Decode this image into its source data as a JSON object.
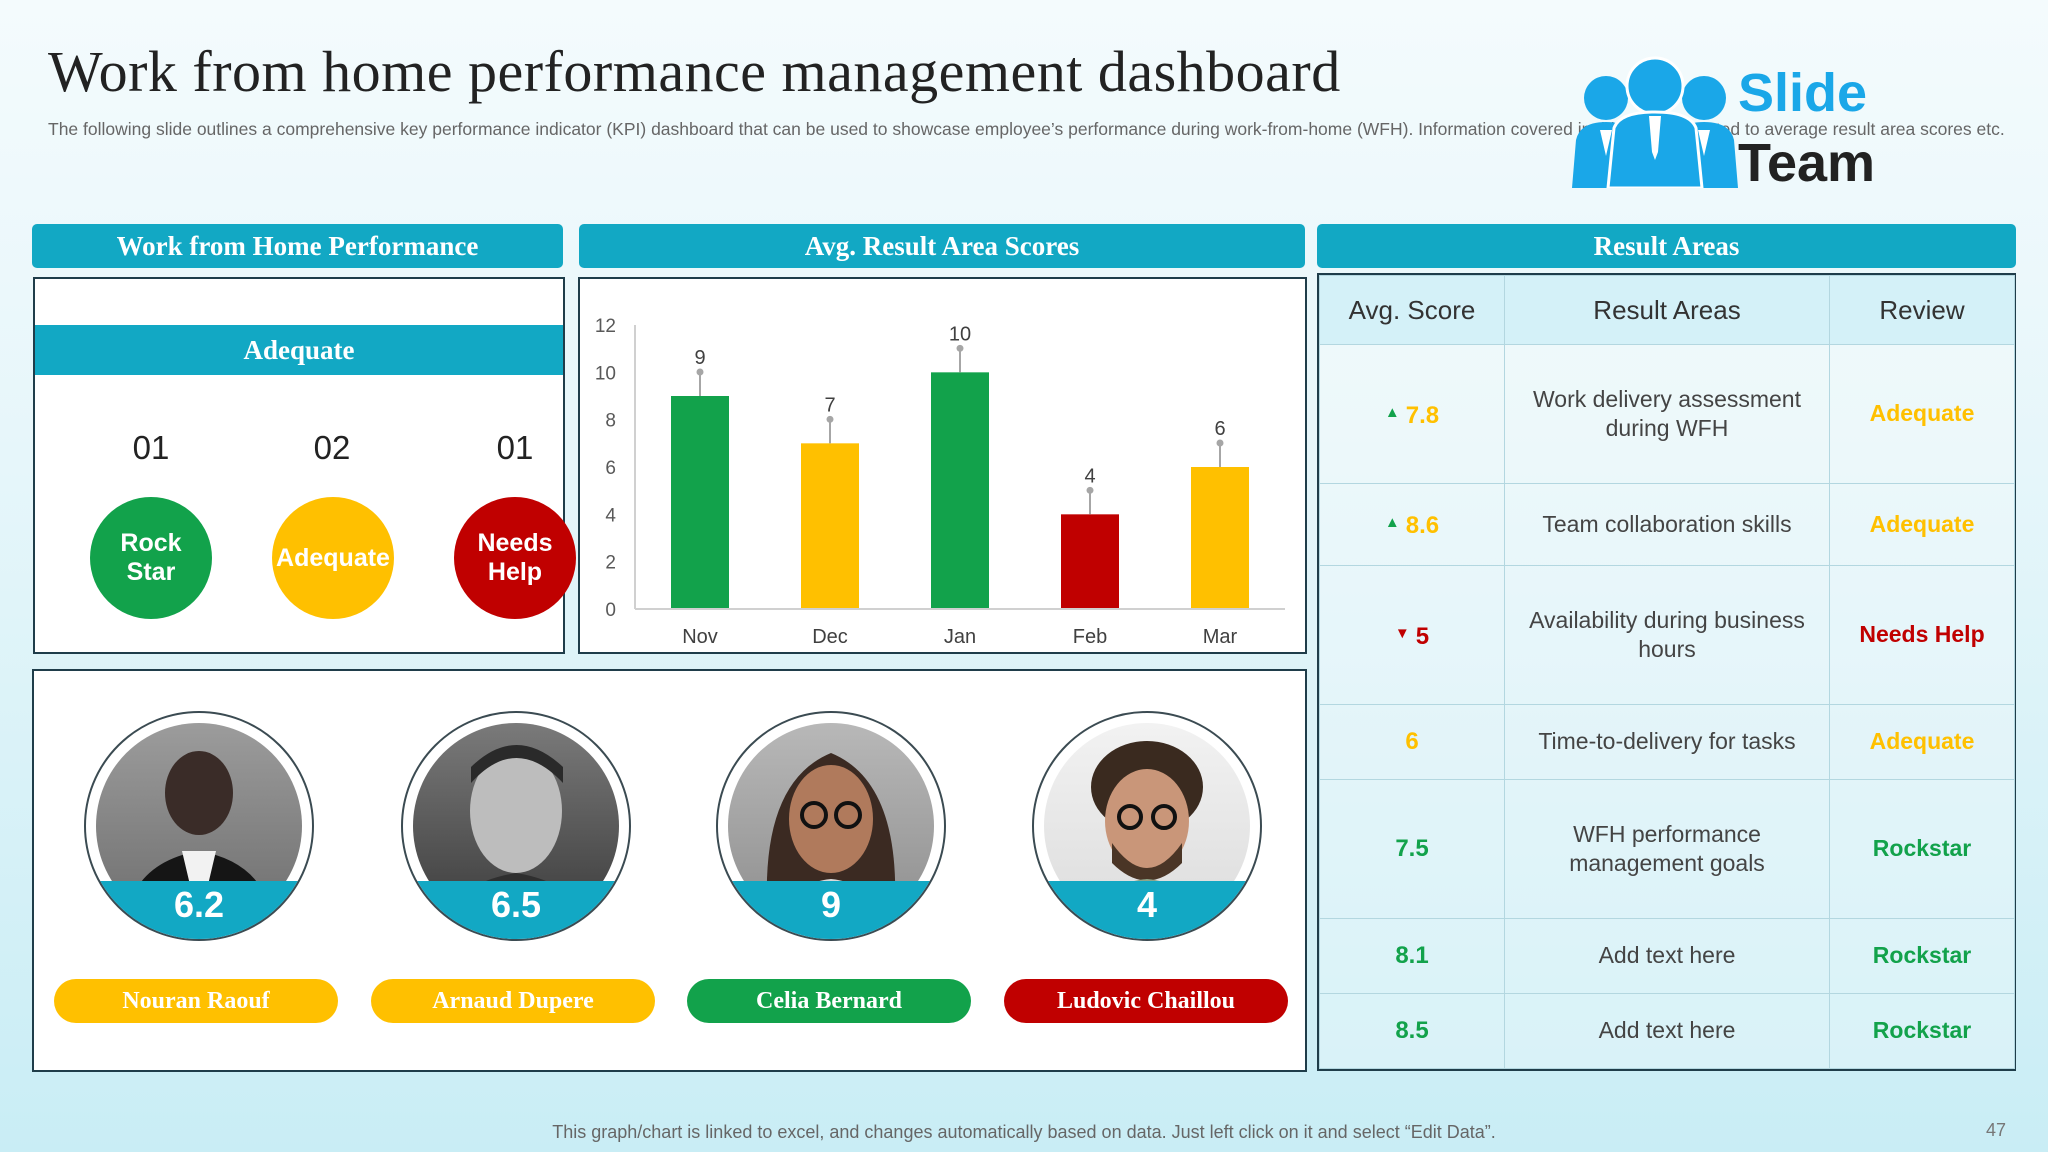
{
  "header": {
    "title": "Work from home performance management dashboard",
    "subtitle": "The following slide outlines a comprehensive key performance indicator (KPI) dashboard that can be used to showcase employee’s performance during work-from-home (WFH). Information covered in this slide is related to average result area scores etc."
  },
  "logo": {
    "word1": "Slide",
    "word2": "Team",
    "icon": "team-people-icon"
  },
  "performance": {
    "heading": "Work from Home Performance",
    "band": "Adequate",
    "items": [
      {
        "count": "01",
        "label_l1": "Rock",
        "label_l2": "Star",
        "color": "#12a24b"
      },
      {
        "count": "02",
        "label_l1": "Adequate",
        "label_l2": "",
        "color": "#ffc000"
      },
      {
        "count": "01",
        "label_l1": "Needs",
        "label_l2": "Help",
        "color": "#c00000"
      }
    ]
  },
  "chart_data": {
    "type": "bar",
    "title": "Avg. Result Area Scores",
    "categories": [
      "Nov",
      "Dec",
      "Jan",
      "Feb",
      "Mar"
    ],
    "values": [
      9,
      7,
      10,
      4,
      6
    ],
    "colors": [
      "#12a24b",
      "#ffc000",
      "#12a24b",
      "#c00000",
      "#ffc000"
    ],
    "yticks": [
      0,
      2,
      4,
      6,
      8,
      10,
      12
    ],
    "ylim": [
      0,
      12
    ],
    "xlabel": "",
    "ylabel": ""
  },
  "team": {
    "members": [
      {
        "score": "6.2",
        "name": "Nouran Raouf",
        "color": "#ffc000"
      },
      {
        "score": "6.5",
        "name": "Arnaud Dupere",
        "color": "#ffc000"
      },
      {
        "score": "9",
        "name": "Celia Bernard",
        "color": "#12a24b"
      },
      {
        "score": "4",
        "name": "Ludovic Chaillou",
        "color": "#c00000"
      }
    ]
  },
  "result_areas": {
    "heading": "Result Areas",
    "columns": [
      "Avg.  Score",
      "Result Areas",
      "Review"
    ],
    "rows": [
      {
        "arrow": "▲",
        "arrow_color": "#12a24b",
        "score": "7.8",
        "score_color": "#ffc000",
        "area": "Work delivery  assessment during WFH",
        "review": "Adequate",
        "review_color": "#ffc000"
      },
      {
        "arrow": "▲",
        "arrow_color": "#12a24b",
        "score": "8.6",
        "score_color": "#ffc000",
        "area": "Team collaboration  skills",
        "review": "Adequate",
        "review_color": "#ffc000"
      },
      {
        "arrow": "▼",
        "arrow_color": "#c00000",
        "score": "5",
        "score_color": "#c00000",
        "area": "Availability  during business hours",
        "review": "Needs Help",
        "review_color": "#c00000"
      },
      {
        "arrow": "",
        "arrow_color": "#000000",
        "score": "6",
        "score_color": "#ffc000",
        "area": "Time-to-delivery for tasks",
        "review": "Adequate",
        "review_color": "#ffc000"
      },
      {
        "arrow": "",
        "arrow_color": "#000000",
        "score": "7.5",
        "score_color": "#12a24b",
        "area": "WFH performance management goals",
        "review": "Rockstar",
        "review_color": "#12a24b"
      },
      {
        "arrow": "",
        "arrow_color": "#000000",
        "score": "8.1",
        "score_color": "#12a24b",
        "area": "Add text here",
        "review": "Rockstar",
        "review_color": "#12a24b"
      },
      {
        "arrow": "",
        "arrow_color": "#000000",
        "score": "8.5",
        "score_color": "#12a24b",
        "area": "Add text here",
        "review": "Rockstar",
        "review_color": "#12a24b"
      }
    ]
  },
  "footer": {
    "note": "This graph/chart is linked to excel,  and changes automatically based on data. Just left click on it and select “Edit Data”.",
    "page": "47"
  }
}
